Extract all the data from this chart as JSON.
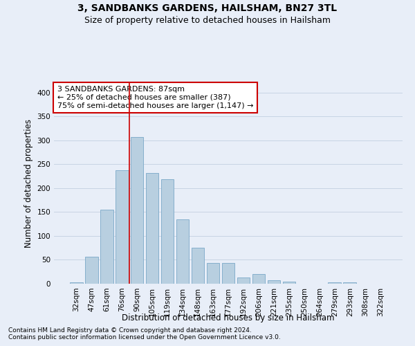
{
  "title1": "3, SANDBANKS GARDENS, HAILSHAM, BN27 3TL",
  "title2": "Size of property relative to detached houses in Hailsham",
  "xlabel": "Distribution of detached houses by size in Hailsham",
  "ylabel": "Number of detached properties",
  "categories": [
    "32sqm",
    "47sqm",
    "61sqm",
    "76sqm",
    "90sqm",
    "105sqm",
    "119sqm",
    "134sqm",
    "148sqm",
    "163sqm",
    "177sqm",
    "192sqm",
    "206sqm",
    "221sqm",
    "235sqm",
    "250sqm",
    "264sqm",
    "279sqm",
    "293sqm",
    "308sqm",
    "322sqm"
  ],
  "values": [
    3,
    57,
    155,
    238,
    307,
    231,
    219,
    134,
    76,
    43,
    44,
    13,
    20,
    7,
    4,
    0,
    0,
    3,
    3,
    0,
    0
  ],
  "bar_color": "#b8cfe0",
  "bar_edge_color": "#7aa8c8",
  "annotation_line1": "3 SANDBANKS GARDENS: 87sqm",
  "annotation_line2": "← 25% of detached houses are smaller (387)",
  "annotation_line3": "75% of semi-detached houses are larger (1,147) →",
  "annotation_box_facecolor": "#ffffff",
  "annotation_box_edgecolor": "#cc0000",
  "vline_color": "#cc0000",
  "vline_x": 3.5,
  "footer1": "Contains HM Land Registry data © Crown copyright and database right 2024.",
  "footer2": "Contains public sector information licensed under the Open Government Licence v3.0.",
  "ylim": [
    0,
    420
  ],
  "yticks": [
    0,
    50,
    100,
    150,
    200,
    250,
    300,
    350,
    400
  ],
  "grid_color": "#c8d4e4",
  "bg_color": "#e8eef8",
  "title1_fontsize": 10,
  "title2_fontsize": 9,
  "xlabel_fontsize": 8.5,
  "ylabel_fontsize": 8.5,
  "tick_fontsize": 7.5,
  "footer_fontsize": 6.5,
  "annotation_fontsize": 8
}
